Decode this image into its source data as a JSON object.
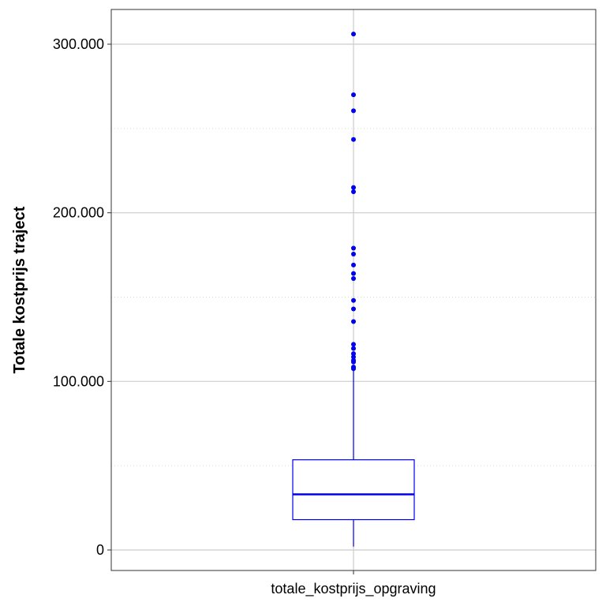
{
  "chart_data": {
    "type": "boxplot",
    "title": "",
    "xlabel": "",
    "ylabel": "Totale kostprijs traject",
    "categories": [
      "totale_kostprijs_opgraving"
    ],
    "ylim": [
      -12500,
      320000
    ],
    "y_ticks": [
      {
        "value": 0,
        "label": "0"
      },
      {
        "value": 100000,
        "label": "100.000"
      },
      {
        "value": 200000,
        "label": "200.000"
      },
      {
        "value": 300000,
        "label": "300.000"
      }
    ],
    "minor_gridlines": [
      50000,
      150000,
      250000
    ],
    "box": {
      "min": 2000,
      "q1": 18000,
      "median": 33000,
      "q3": 53500,
      "max": 108000
    },
    "outliers": [
      306000,
      270000,
      260500,
      243500,
      215000,
      212500,
      179000,
      175500,
      169000,
      164000,
      161000,
      148000,
      143000,
      135500,
      122000,
      119500,
      116500,
      114500,
      112500,
      111500,
      108500,
      107500
    ],
    "colors": {
      "box": "#0000ee",
      "grid": "#cccccc",
      "minor_grid": "#d9d9d9",
      "panel_border": "#333333"
    },
    "grid": true
  }
}
